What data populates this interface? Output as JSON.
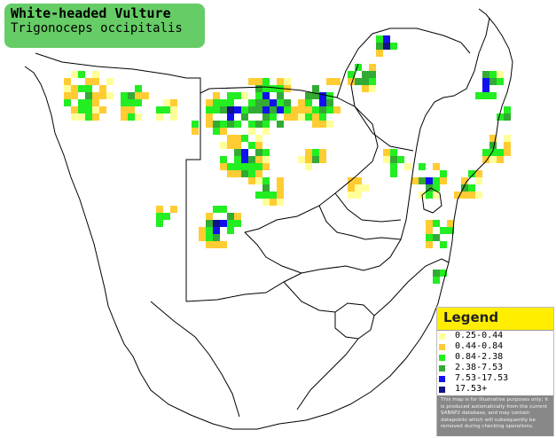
{
  "title": {
    "common_name": "White-headed Vulture",
    "scientific_name": "Trigonoceps occipitalis",
    "background_color": "#66cc66"
  },
  "legend": {
    "heading": "Legend",
    "heading_color": "#ffee00",
    "items": [
      {
        "label": "0.25-0.44",
        "color": "#ffff99"
      },
      {
        "label": "0.44-0.84",
        "color": "#ffcc33"
      },
      {
        "label": "0.84-2.38",
        "color": "#22ee22"
      },
      {
        "label": "2.38-7.53",
        "color": "#33aa33"
      },
      {
        "label": "7.53-17.53",
        "color": "#1111ee"
      },
      {
        "label": "17.53+",
        "color": "#111188"
      }
    ],
    "note": "This map is for illustrative purposes only; it is produced automatically from the current SABAP2 database, and may contain datapoints which will subsequently be removed during checking operations."
  },
  "map": {
    "region": "southern-africa",
    "border_color": "#000000",
    "land_color": "#ffffff"
  }
}
